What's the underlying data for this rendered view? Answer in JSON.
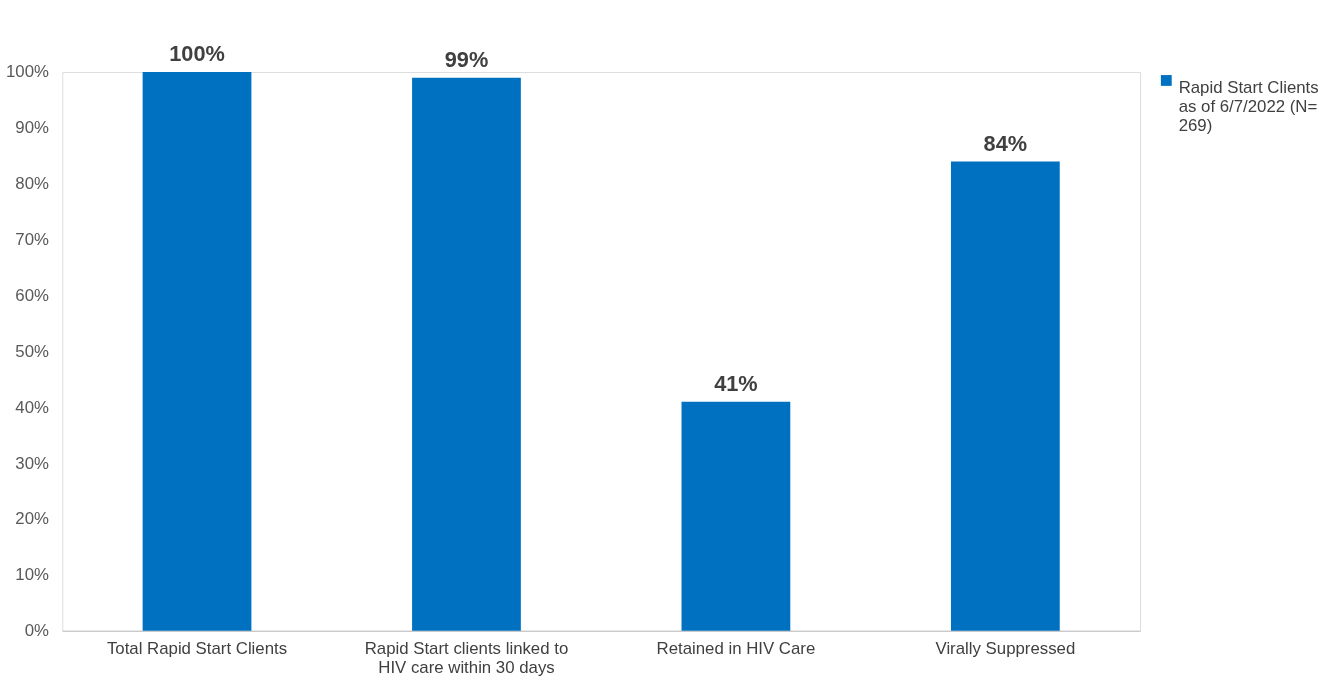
{
  "chart_data": {
    "type": "bar",
    "categories": [
      "Total Rapid Start Clients",
      "Rapid Start clients linked to HIV care within 30 days",
      "Retained in HIV Care",
      "Virally Suppressed"
    ],
    "series": [
      {
        "name": "Rapid Start Clients as of 6/7/2022 (N= 269)",
        "color": "#0070c0",
        "values": [
          100,
          99,
          41,
          84
        ]
      }
    ],
    "value_labels": [
      "100%",
      "99%",
      "41%",
      "84%"
    ],
    "ylim": [
      0,
      100
    ],
    "yticks": [
      {
        "value": 0,
        "label": "0%"
      },
      {
        "value": 10,
        "label": "10%"
      },
      {
        "value": 20,
        "label": "20%"
      },
      {
        "value": 30,
        "label": "30%"
      },
      {
        "value": 40,
        "label": "40%"
      },
      {
        "value": 50,
        "label": "50%"
      },
      {
        "value": 60,
        "label": "60%"
      },
      {
        "value": 70,
        "label": "70%"
      },
      {
        "value": 80,
        "label": "80%"
      },
      {
        "value": 90,
        "label": "90%"
      },
      {
        "value": 100,
        "label": "100%"
      }
    ],
    "grid": false,
    "legend": "right"
  }
}
